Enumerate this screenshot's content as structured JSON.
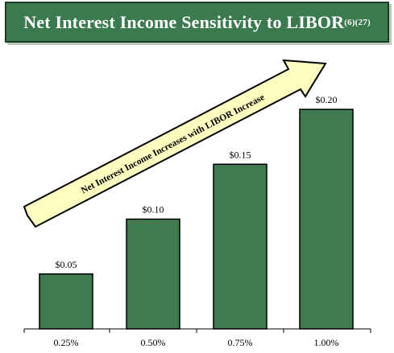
{
  "chart_data": {
    "type": "bar",
    "title": "Net Interest Income Sensitivity to LIBOR",
    "title_superscript": "(6)(27)",
    "categories": [
      "0.25%",
      "0.50%",
      "0.75%",
      "1.00%"
    ],
    "values": [
      0.05,
      0.1,
      0.15,
      0.2
    ],
    "data_labels": [
      "$0.05",
      "$0.10",
      "$0.15",
      "$0.20"
    ],
    "annotation": "Net Interest Income Increases with LIBOR Increase",
    "ylim": [
      0,
      0.2
    ],
    "grid": false,
    "legend": "none",
    "bar_color": "#3f7a51",
    "banner_color": "#3b7a4f",
    "arrow_fill": "#fdfdc0"
  }
}
